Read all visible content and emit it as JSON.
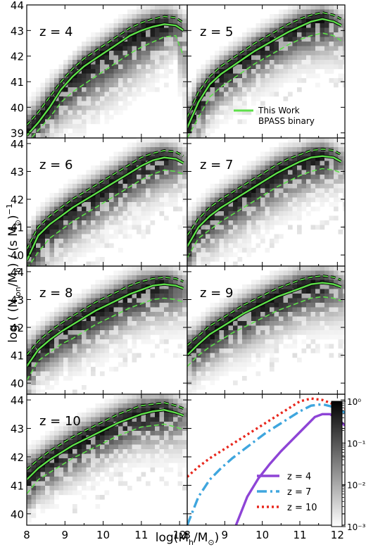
{
  "figure": {
    "ylabel": "log ( (Ṅion/Mh)  /  (s M⊙)⁻¹ )",
    "ylabel_parts": {
      "open": "log ( (",
      "ndot": "N",
      "ion_sub": "ion",
      "slash_m": "/M",
      "h_sub": "h",
      "mid": ")  /  (s M",
      "sun_sub": "⊙",
      "close": ")",
      "exp": "−1"
    },
    "xlabel_parts": {
      "pre": "log(M",
      "h_sub": "h",
      "mid": "/M",
      "sun_sub": "⊙",
      "post": ")"
    },
    "legend_top": {
      "label_line1": "This Work",
      "label_line2": "BPASS binary",
      "color": "#5ee04a"
    },
    "colorbar": {
      "ticks": [
        "10⁰",
        "10⁻¹",
        "10⁻²",
        "10⁻³"
      ],
      "range": [
        0.001,
        1
      ],
      "scale": "log"
    }
  },
  "chart_data": [
    {
      "type": "heatmap",
      "panel": 1,
      "label": "z = 4",
      "xlim": [
        8,
        12.2
      ],
      "ylim": [
        38.8,
        44
      ],
      "x": [
        8.0,
        8.3,
        8.6,
        8.9,
        9.2,
        9.5,
        9.8,
        10.1,
        10.4,
        10.7,
        11.0,
        11.3,
        11.6,
        11.9,
        12.1
      ],
      "median": [
        38.9,
        39.4,
        40.0,
        40.7,
        41.2,
        41.6,
        41.9,
        42.2,
        42.5,
        42.8,
        43.0,
        43.15,
        43.25,
        43.2,
        43.0
      ],
      "upper": [
        39.3,
        39.8,
        40.4,
        41.0,
        41.5,
        41.9,
        42.2,
        42.5,
        42.8,
        43.1,
        43.3,
        43.45,
        43.55,
        43.5,
        43.3
      ],
      "lower": [
        38.6,
        39.1,
        39.6,
        40.2,
        40.6,
        40.9,
        41.2,
        41.5,
        41.8,
        42.1,
        42.35,
        42.55,
        42.75,
        42.8,
        42.0
      ]
    },
    {
      "type": "heatmap",
      "panel": 2,
      "label": "z = 5",
      "xlim": [
        8,
        12.2
      ],
      "ylim": [
        38.8,
        44
      ],
      "x": [
        8.0,
        8.3,
        8.6,
        8.9,
        9.2,
        9.5,
        9.8,
        10.1,
        10.4,
        10.7,
        11.0,
        11.3,
        11.6,
        11.9,
        12.1
      ],
      "median": [
        39.2,
        40.2,
        40.9,
        41.3,
        41.6,
        41.9,
        42.2,
        42.45,
        42.7,
        42.95,
        43.15,
        43.35,
        43.45,
        43.35,
        43.2
      ],
      "upper": [
        39.6,
        40.6,
        41.2,
        41.6,
        41.9,
        42.2,
        42.5,
        42.75,
        43.0,
        43.25,
        43.45,
        43.6,
        43.7,
        43.6,
        43.45
      ],
      "lower": [
        38.8,
        39.6,
        40.4,
        40.8,
        41.1,
        41.4,
        41.7,
        41.95,
        42.2,
        42.45,
        42.65,
        42.8,
        42.9,
        42.8,
        42.6
      ]
    },
    {
      "type": "heatmap",
      "panel": 3,
      "label": "z = 6",
      "xlim": [
        8,
        12.2
      ],
      "ylim": [
        39.6,
        44.2
      ],
      "x": [
        8.0,
        8.3,
        8.6,
        8.9,
        9.2,
        9.5,
        9.8,
        10.1,
        10.4,
        10.7,
        11.0,
        11.3,
        11.6,
        11.9,
        12.1
      ],
      "median": [
        39.8,
        40.7,
        41.1,
        41.4,
        41.7,
        41.95,
        42.2,
        42.45,
        42.7,
        42.95,
        43.2,
        43.4,
        43.5,
        43.45,
        43.3
      ],
      "upper": [
        40.2,
        41.0,
        41.4,
        41.7,
        42.0,
        42.25,
        42.5,
        42.75,
        43.0,
        43.25,
        43.5,
        43.65,
        43.75,
        43.7,
        43.55
      ],
      "lower": [
        39.5,
        40.1,
        40.6,
        40.9,
        41.2,
        41.45,
        41.7,
        41.95,
        42.2,
        42.45,
        42.7,
        42.9,
        43.05,
        43.0,
        42.9
      ]
    },
    {
      "type": "heatmap",
      "panel": 4,
      "label": "z = 7",
      "xlim": [
        8,
        12.2
      ],
      "ylim": [
        39.6,
        44.2
      ],
      "x": [
        8.0,
        8.3,
        8.6,
        8.9,
        9.2,
        9.5,
        9.8,
        10.1,
        10.4,
        10.7,
        11.0,
        11.3,
        11.6,
        11.9,
        12.1
      ],
      "median": [
        40.3,
        41.0,
        41.4,
        41.7,
        41.95,
        42.2,
        42.45,
        42.7,
        42.95,
        43.15,
        43.35,
        43.5,
        43.55,
        43.5,
        43.35
      ],
      "upper": [
        40.7,
        41.3,
        41.7,
        42.0,
        42.25,
        42.5,
        42.75,
        43.0,
        43.25,
        43.45,
        43.6,
        43.75,
        43.8,
        43.75,
        43.6
      ],
      "lower": [
        39.9,
        40.6,
        40.9,
        41.2,
        41.45,
        41.7,
        41.95,
        42.2,
        42.45,
        42.65,
        42.85,
        43.0,
        43.1,
        43.05,
        42.95
      ]
    },
    {
      "type": "heatmap",
      "panel": 5,
      "label": "z = 8",
      "xlim": [
        8,
        12.2
      ],
      "ylim": [
        39.6,
        44.2
      ],
      "x": [
        8.0,
        8.3,
        8.6,
        8.9,
        9.2,
        9.5,
        9.8,
        10.1,
        10.4,
        10.7,
        11.0,
        11.3,
        11.6,
        11.9,
        12.1
      ],
      "median": [
        40.6,
        41.2,
        41.55,
        41.85,
        42.1,
        42.35,
        42.6,
        42.8,
        43.0,
        43.2,
        43.35,
        43.5,
        43.55,
        43.5,
        43.4
      ],
      "upper": [
        41.0,
        41.5,
        41.85,
        42.15,
        42.4,
        42.65,
        42.9,
        43.1,
        43.3,
        43.5,
        43.65,
        43.75,
        43.8,
        43.75,
        43.65
      ],
      "lower": [
        40.1,
        40.8,
        41.1,
        41.4,
        41.6,
        41.85,
        42.1,
        42.3,
        42.5,
        42.7,
        42.85,
        43.0,
        43.05,
        43.0,
        42.9
      ]
    },
    {
      "type": "heatmap",
      "panel": 6,
      "label": "z = 9",
      "xlim": [
        8,
        12.2
      ],
      "ylim": [
        39.6,
        44.2
      ],
      "x": [
        8.0,
        8.3,
        8.6,
        8.9,
        9.2,
        9.5,
        9.8,
        10.1,
        10.4,
        10.7,
        11.0,
        11.3,
        11.6,
        11.9,
        12.1
      ],
      "median": [
        41.0,
        41.4,
        41.75,
        42.0,
        42.25,
        42.5,
        42.7,
        42.9,
        43.1,
        43.25,
        43.4,
        43.55,
        43.6,
        43.55,
        43.45
      ],
      "upper": [
        41.35,
        41.7,
        42.05,
        42.3,
        42.55,
        42.8,
        43.0,
        43.2,
        43.4,
        43.55,
        43.7,
        43.8,
        43.85,
        43.8,
        43.7
      ],
      "lower": [
        40.6,
        41.0,
        41.3,
        41.55,
        41.8,
        42.0,
        42.2,
        42.4,
        42.6,
        42.75,
        42.9,
        43.05,
        43.1,
        43.05,
        42.95
      ]
    },
    {
      "type": "heatmap",
      "panel": 7,
      "label": "z = 10",
      "xlim": [
        8,
        12.2
      ],
      "ylim": [
        39.6,
        44.2
      ],
      "x": [
        8.0,
        8.3,
        8.6,
        8.9,
        9.2,
        9.5,
        9.8,
        10.1,
        10.4,
        10.7,
        11.0,
        11.3,
        11.6,
        11.9,
        12.1
      ],
      "median": [
        41.2,
        41.6,
        41.9,
        42.15,
        42.4,
        42.6,
        42.8,
        43.0,
        43.2,
        43.35,
        43.5,
        43.6,
        43.65,
        43.55,
        43.45
      ],
      "upper": [
        41.55,
        41.9,
        42.2,
        42.45,
        42.7,
        42.9,
        43.1,
        43.3,
        43.5,
        43.65,
        43.8,
        43.85,
        43.9,
        43.8,
        43.7
      ],
      "lower": [
        40.7,
        41.2,
        41.45,
        41.7,
        41.95,
        42.15,
        42.35,
        42.55,
        42.75,
        42.9,
        43.05,
        43.1,
        43.15,
        43.05,
        42.95
      ]
    },
    {
      "type": "line",
      "panel": 8,
      "xlim": [
        8,
        12.2
      ],
      "ylim": [
        39.6,
        44.2
      ],
      "series": [
        {
          "name": "z = 4",
          "color": "#8e44d6",
          "dash": "solid",
          "x": [
            9.3,
            9.6,
            9.9,
            10.2,
            10.5,
            10.8,
            11.1,
            11.4,
            11.6,
            11.8,
            12.0,
            12.2
          ],
          "y": [
            39.6,
            40.6,
            41.25,
            41.75,
            42.2,
            42.6,
            43.0,
            43.4,
            43.5,
            43.5,
            43.35,
            43.1
          ]
        },
        {
          "name": "z = 7",
          "color": "#3fa6de",
          "dash": "dashdot",
          "x": [
            8.0,
            8.3,
            8.6,
            8.9,
            9.2,
            9.5,
            9.8,
            10.1,
            10.4,
            10.7,
            11.0,
            11.3,
            11.6,
            11.9,
            12.2
          ],
          "y": [
            39.6,
            40.6,
            41.2,
            41.6,
            41.95,
            42.25,
            42.55,
            42.85,
            43.1,
            43.35,
            43.6,
            43.8,
            43.85,
            43.75,
            43.55
          ]
        },
        {
          "name": "z = 10",
          "color": "#e8281e",
          "dash": "dotted",
          "x": [
            8.0,
            8.3,
            8.6,
            8.9,
            9.2,
            9.5,
            9.8,
            10.1,
            10.4,
            10.7,
            11.0,
            11.3,
            11.6,
            11.9,
            12.2
          ],
          "y": [
            41.3,
            41.65,
            41.95,
            42.2,
            42.45,
            42.7,
            42.95,
            43.2,
            43.45,
            43.7,
            43.95,
            44.05,
            44.0,
            43.85,
            43.7
          ]
        }
      ]
    }
  ]
}
